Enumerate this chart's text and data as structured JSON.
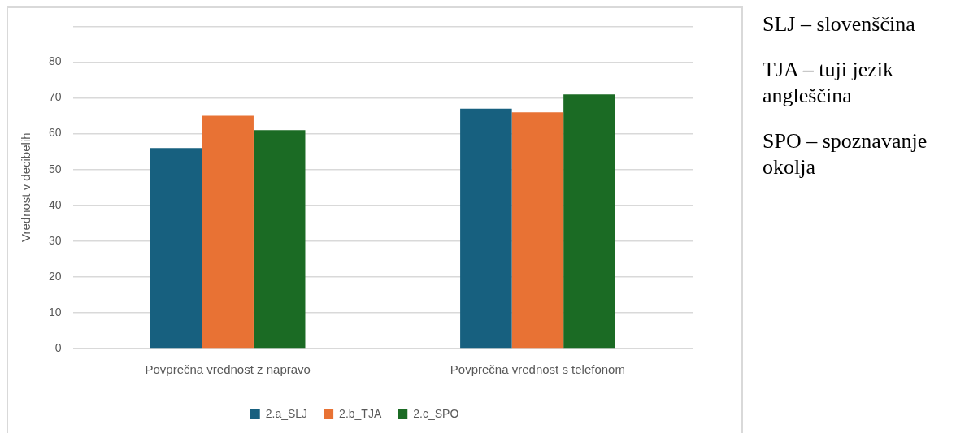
{
  "chart_data": {
    "type": "bar",
    "ylabel": "Vrednost v decibelih",
    "categories": [
      "Povprečna vrednost z napravo",
      "Povprečna vrednost s telefonom"
    ],
    "series": [
      {
        "name": "2.a_SLJ",
        "color": "#17607f",
        "values": [
          56,
          67
        ]
      },
      {
        "name": "2.b_TJA",
        "color": "#e87234",
        "values": [
          65,
          66
        ]
      },
      {
        "name": "2.c_SPO",
        "color": "#1b6b24",
        "values": [
          61,
          71
        ]
      }
    ],
    "ylim": [
      0,
      90
    ],
    "yticks": [
      0,
      10,
      20,
      30,
      40,
      50,
      60,
      70,
      80,
      {
        "value": 90,
        "label": null
      }
    ],
    "grid": "y",
    "legend": "bottom",
    "annotations": [
      "SLJ – slovenščina",
      "TJA – tuji jezik angleščina",
      "SPO – spoznavanje okolja"
    ]
  }
}
